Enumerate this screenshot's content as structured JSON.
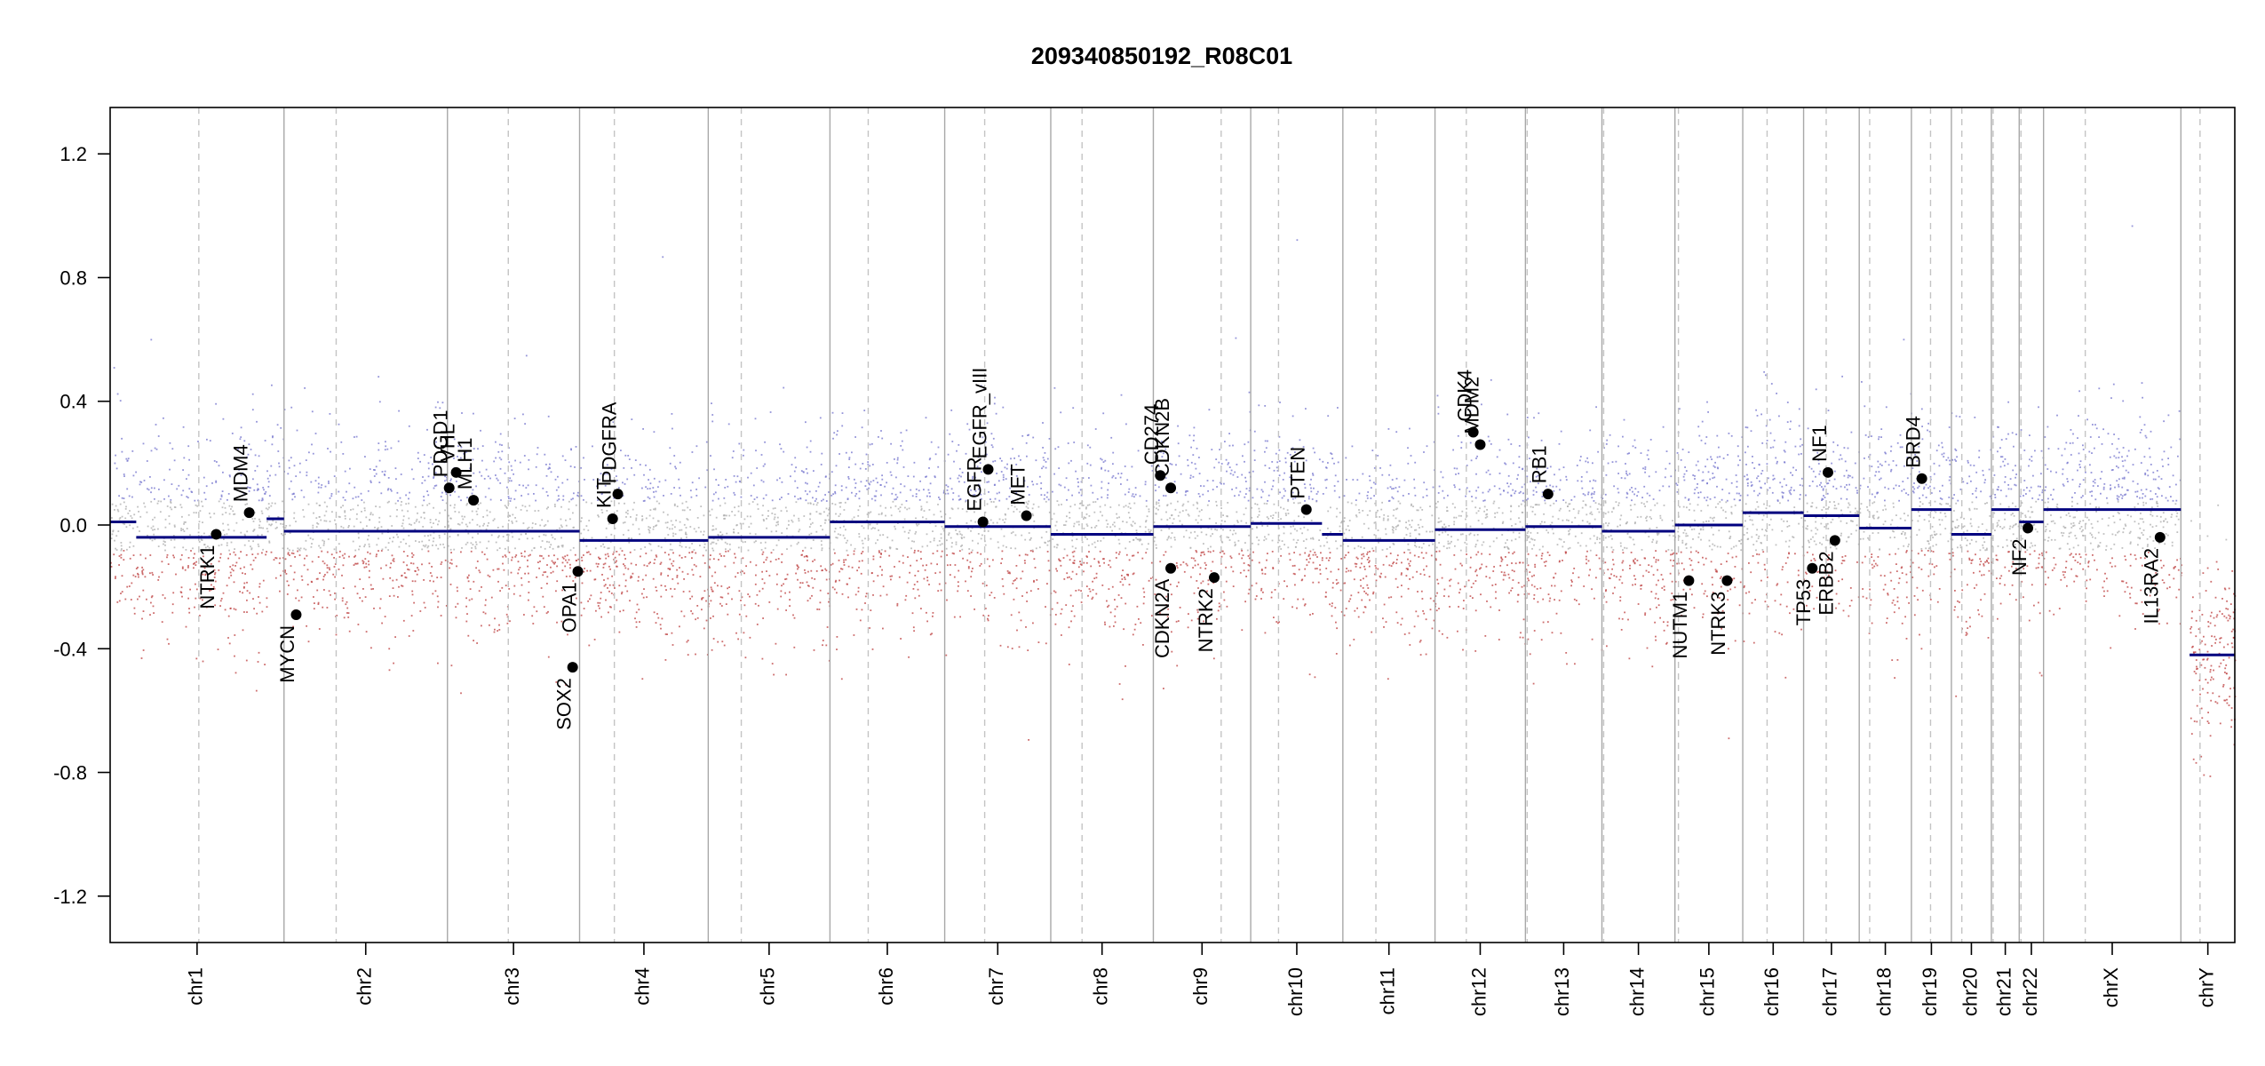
{
  "chart_data": {
    "type": "scatter",
    "title": "209340850192_R08C01",
    "xlabel": "",
    "ylabel": "",
    "ylim": [
      -1.35,
      1.35
    ],
    "y_ticks": [
      -1.2,
      -0.8,
      -0.4,
      0.0,
      0.4,
      0.8,
      1.2
    ],
    "y_tick_labels": [
      "-1.2",
      "-0.8",
      "-0.4",
      "0.0",
      "0.4",
      "0.8",
      "1.2"
    ],
    "grid": false,
    "colors": {
      "segment": "#00007f",
      "gain_probe": "#7a7ad0",
      "loss_probe": "#c04848",
      "neutral_probe": "#b0b0b0",
      "boundary": "#a8a8a8",
      "centromere": "#c4c4c4",
      "gene_dot": "#000000",
      "axis": "#000000"
    },
    "chromosomes": [
      {
        "name": "chr1",
        "start": 0,
        "end": 1.0,
        "centromere": 0.51
      },
      {
        "name": "chr2",
        "start": 1.0,
        "end": 1.94,
        "centromere": 1.3
      },
      {
        "name": "chr3",
        "start": 1.94,
        "end": 2.7,
        "centromere": 2.29
      },
      {
        "name": "chr4",
        "start": 2.7,
        "end": 3.44,
        "centromere": 2.9
      },
      {
        "name": "chr5",
        "start": 3.44,
        "end": 4.14,
        "centromere": 3.63
      },
      {
        "name": "chr6",
        "start": 4.14,
        "end": 4.8,
        "centromere": 4.36
      },
      {
        "name": "chr7",
        "start": 4.8,
        "end": 5.41,
        "centromere": 5.03
      },
      {
        "name": "chr8",
        "start": 5.41,
        "end": 6.0,
        "centromere": 5.59
      },
      {
        "name": "chr9",
        "start": 6.0,
        "end": 6.56,
        "centromere": 6.39
      },
      {
        "name": "chr10",
        "start": 6.56,
        "end": 7.09,
        "centromere": 6.72
      },
      {
        "name": "chr11",
        "start": 7.09,
        "end": 7.62,
        "centromere": 7.28
      },
      {
        "name": "chr12",
        "start": 7.62,
        "end": 8.14,
        "centromere": 7.8
      },
      {
        "name": "chr13",
        "start": 8.14,
        "end": 8.58,
        "centromere": 8.15
      },
      {
        "name": "chr14",
        "start": 8.58,
        "end": 9.0,
        "centromere": 8.59
      },
      {
        "name": "chr15",
        "start": 9.0,
        "end": 9.39,
        "centromere": 9.02
      },
      {
        "name": "chr16",
        "start": 9.39,
        "end": 9.74,
        "centromere": 9.53
      },
      {
        "name": "chr17",
        "start": 9.74,
        "end": 10.06,
        "centromere": 9.87
      },
      {
        "name": "chr18",
        "start": 10.06,
        "end": 10.36,
        "centromere": 10.12
      },
      {
        "name": "chr19",
        "start": 10.36,
        "end": 10.59,
        "centromere": 10.47
      },
      {
        "name": "chr20",
        "start": 10.59,
        "end": 10.82,
        "centromere": 10.65
      },
      {
        "name": "chr21",
        "start": 10.82,
        "end": 10.98,
        "centromere": 10.83
      },
      {
        "name": "chr22",
        "start": 10.98,
        "end": 11.12,
        "centromere": 10.99
      },
      {
        "name": "chrX",
        "start": 11.12,
        "end": 11.91,
        "centromere": 11.36
      },
      {
        "name": "chrY",
        "start": 11.91,
        "end": 12.22,
        "centromere": 12.02
      }
    ],
    "segments": [
      {
        "x0": 0.0,
        "x1": 0.15,
        "y": 0.01
      },
      {
        "x0": 0.15,
        "x1": 0.9,
        "y": -0.04
      },
      {
        "x0": 0.9,
        "x1": 1.0,
        "y": 0.02
      },
      {
        "x0": 1.0,
        "x1": 1.94,
        "y": -0.02
      },
      {
        "x0": 1.94,
        "x1": 2.7,
        "y": -0.02
      },
      {
        "x0": 2.7,
        "x1": 3.44,
        "y": -0.05
      },
      {
        "x0": 3.44,
        "x1": 4.14,
        "y": -0.04
      },
      {
        "x0": 4.14,
        "x1": 4.8,
        "y": 0.01
      },
      {
        "x0": 4.8,
        "x1": 5.41,
        "y": -0.005
      },
      {
        "x0": 5.41,
        "x1": 6.0,
        "y": -0.03
      },
      {
        "x0": 6.0,
        "x1": 6.56,
        "y": -0.005
      },
      {
        "x0": 6.56,
        "x1": 6.97,
        "y": 0.005
      },
      {
        "x0": 6.97,
        "x1": 7.09,
        "y": -0.03
      },
      {
        "x0": 7.09,
        "x1": 7.62,
        "y": -0.05
      },
      {
        "x0": 7.62,
        "x1": 8.14,
        "y": -0.015
      },
      {
        "x0": 8.14,
        "x1": 8.58,
        "y": -0.005
      },
      {
        "x0": 8.58,
        "x1": 9.0,
        "y": -0.02
      },
      {
        "x0": 9.0,
        "x1": 9.39,
        "y": 0.0
      },
      {
        "x0": 9.39,
        "x1": 9.74,
        "y": 0.04
      },
      {
        "x0": 9.74,
        "x1": 10.06,
        "y": 0.03
      },
      {
        "x0": 10.06,
        "x1": 10.36,
        "y": -0.01
      },
      {
        "x0": 10.36,
        "x1": 10.59,
        "y": 0.05
      },
      {
        "x0": 10.59,
        "x1": 10.82,
        "y": -0.03
      },
      {
        "x0": 10.82,
        "x1": 10.98,
        "y": 0.05
      },
      {
        "x0": 10.98,
        "x1": 11.12,
        "y": 0.01
      },
      {
        "x0": 11.12,
        "x1": 11.91,
        "y": 0.05
      },
      {
        "x0": 11.96,
        "x1": 12.22,
        "y": -0.42
      }
    ],
    "genes": [
      {
        "name": "NTRK1",
        "x": 0.61,
        "y": -0.03,
        "label_side": "below"
      },
      {
        "name": "MDM4",
        "x": 0.8,
        "y": 0.04,
        "label_side": "above"
      },
      {
        "name": "MYCN",
        "x": 1.07,
        "y": -0.29,
        "label_side": "below"
      },
      {
        "name": "PDGD1",
        "x": 1.95,
        "y": 0.12,
        "label_side": "above"
      },
      {
        "name": "VHL",
        "x": 1.99,
        "y": 0.17,
        "label_side": "above"
      },
      {
        "name": "MLH1",
        "x": 2.09,
        "y": 0.08,
        "label_side": "above"
      },
      {
        "name": "SOX2",
        "x": 2.66,
        "y": -0.46,
        "label_side": "below"
      },
      {
        "name": "OPA1",
        "x": 2.69,
        "y": -0.15,
        "label_side": "below"
      },
      {
        "name": "KIT",
        "x": 2.89,
        "y": 0.02,
        "label_side": "above"
      },
      {
        "name": "PDGFRA",
        "x": 2.92,
        "y": 0.1,
        "label_side": "above"
      },
      {
        "name": "EGFR",
        "x": 5.02,
        "y": 0.01,
        "label_side": "above"
      },
      {
        "name": "EGFR_vIII",
        "x": 5.05,
        "y": 0.18,
        "label_side": "above"
      },
      {
        "name": "MET",
        "x": 5.27,
        "y": 0.03,
        "label_side": "above"
      },
      {
        "name": "CD274",
        "x": 6.04,
        "y": 0.16,
        "label_side": "above"
      },
      {
        "name": "CDKN2B",
        "x": 6.1,
        "y": 0.12,
        "label_side": "above"
      },
      {
        "name": "CDKN2A",
        "x": 6.1,
        "y": -0.14,
        "label_side": "below"
      },
      {
        "name": "NTRK2",
        "x": 6.35,
        "y": -0.17,
        "label_side": "below"
      },
      {
        "name": "PTEN",
        "x": 6.88,
        "y": 0.05,
        "label_side": "above"
      },
      {
        "name": "CDK4",
        "x": 7.84,
        "y": 0.3,
        "label_side": "above"
      },
      {
        "name": "MDM2",
        "x": 7.88,
        "y": 0.26,
        "label_side": "above"
      },
      {
        "name": "RB1",
        "x": 8.27,
        "y": 0.1,
        "label_side": "above"
      },
      {
        "name": "NUTM1",
        "x": 9.08,
        "y": -0.18,
        "label_side": "below"
      },
      {
        "name": "NTRK3",
        "x": 9.3,
        "y": -0.18,
        "label_side": "below"
      },
      {
        "name": "TP53",
        "x": 9.79,
        "y": -0.14,
        "label_side": "below"
      },
      {
        "name": "ERBB2",
        "x": 9.92,
        "y": -0.05,
        "label_side": "below"
      },
      {
        "name": "NF1",
        "x": 9.88,
        "y": 0.17,
        "label_side": "above"
      },
      {
        "name": "BRD4",
        "x": 10.42,
        "y": 0.15,
        "label_side": "above"
      },
      {
        "name": "NF2",
        "x": 11.03,
        "y": -0.01,
        "label_side": "below"
      },
      {
        "name": "IL13RA2",
        "x": 11.79,
        "y": -0.04,
        "label_side": "below"
      }
    ],
    "probe_spread": 0.16
  }
}
